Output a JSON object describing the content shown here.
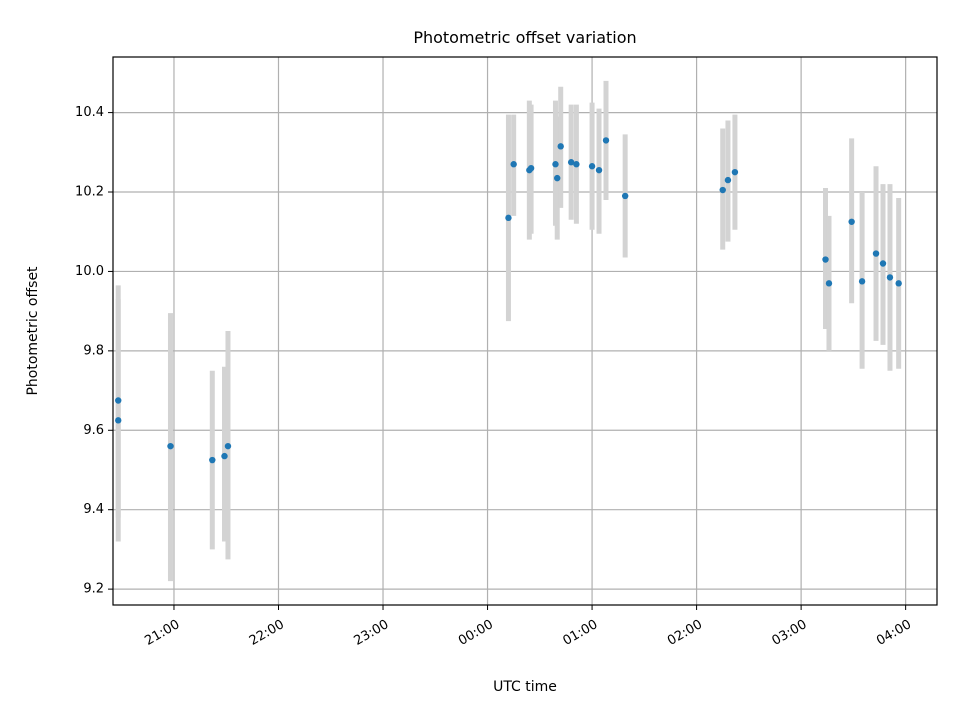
{
  "chart_data": {
    "type": "scatter",
    "title": "Photometric offset variation",
    "xlabel": "UTC time",
    "ylabel": "Photometric offset",
    "grid": true,
    "legend": "none",
    "x_axis": {
      "kind": "time",
      "range": [
        "20:25",
        "04:18"
      ],
      "tick_labels": [
        "21:00",
        "22:00",
        "23:00",
        "00:00",
        "01:00",
        "02:00",
        "03:00",
        "04:00"
      ]
    },
    "y_axis": {
      "range": [
        9.16,
        10.54
      ],
      "tick_labels": [
        "9.2",
        "9.4",
        "9.6",
        "9.8",
        "10.0",
        "10.2",
        "10.4"
      ]
    },
    "colors": {
      "points": "#1f77b4",
      "errorbars": "#d3d3d3",
      "grid": "#b0b0b0"
    },
    "series": [
      {
        "points": [
          {
            "t": "20:28",
            "y": 9.675,
            "lo": 9.38,
            "hi": 9.965
          },
          {
            "t": "20:28",
            "y": 9.625,
            "lo": 9.32,
            "hi": 9.93
          },
          {
            "t": "20:58",
            "y": 9.56,
            "lo": 9.22,
            "hi": 9.895
          },
          {
            "t": "21:22",
            "y": 9.525,
            "lo": 9.3,
            "hi": 9.75
          },
          {
            "t": "21:29",
            "y": 9.535,
            "lo": 9.32,
            "hi": 9.76
          },
          {
            "t": "21:31",
            "y": 9.56,
            "lo": 9.275,
            "hi": 9.85
          },
          {
            "t": "00:12",
            "y": 10.135,
            "lo": 9.875,
            "hi": 10.395
          },
          {
            "t": "00:15",
            "y": 10.27,
            "lo": 10.14,
            "hi": 10.395
          },
          {
            "t": "00:24",
            "y": 10.255,
            "lo": 10.08,
            "hi": 10.43
          },
          {
            "t": "00:25",
            "y": 10.26,
            "lo": 10.095,
            "hi": 10.42
          },
          {
            "t": "00:39",
            "y": 10.27,
            "lo": 10.115,
            "hi": 10.43
          },
          {
            "t": "00:40",
            "y": 10.235,
            "lo": 10.08,
            "hi": 10.39
          },
          {
            "t": "00:42",
            "y": 10.315,
            "lo": 10.16,
            "hi": 10.465
          },
          {
            "t": "00:48",
            "y": 10.275,
            "lo": 10.13,
            "hi": 10.42
          },
          {
            "t": "00:51",
            "y": 10.27,
            "lo": 10.12,
            "hi": 10.42
          },
          {
            "t": "01:00",
            "y": 10.265,
            "lo": 10.105,
            "hi": 10.425
          },
          {
            "t": "01:04",
            "y": 10.255,
            "lo": 10.095,
            "hi": 10.41
          },
          {
            "t": "01:08",
            "y": 10.33,
            "lo": 10.18,
            "hi": 10.48
          },
          {
            "t": "01:19",
            "y": 10.19,
            "lo": 10.035,
            "hi": 10.345
          },
          {
            "t": "02:15",
            "y": 10.205,
            "lo": 10.055,
            "hi": 10.36
          },
          {
            "t": "02:18",
            "y": 10.23,
            "lo": 10.075,
            "hi": 10.38
          },
          {
            "t": "02:22",
            "y": 10.25,
            "lo": 10.105,
            "hi": 10.395
          },
          {
            "t": "03:14",
            "y": 10.03,
            "lo": 9.855,
            "hi": 10.21
          },
          {
            "t": "03:16",
            "y": 9.97,
            "lo": 9.8,
            "hi": 10.14
          },
          {
            "t": "03:29",
            "y": 10.125,
            "lo": 9.92,
            "hi": 10.335
          },
          {
            "t": "03:35",
            "y": 9.975,
            "lo": 9.755,
            "hi": 10.2
          },
          {
            "t": "03:43",
            "y": 10.045,
            "lo": 9.825,
            "hi": 10.265
          },
          {
            "t": "03:47",
            "y": 10.02,
            "lo": 9.815,
            "hi": 10.22
          },
          {
            "t": "03:51",
            "y": 9.985,
            "lo": 9.75,
            "hi": 10.22
          },
          {
            "t": "03:56",
            "y": 9.97,
            "lo": 9.755,
            "hi": 10.185
          }
        ]
      }
    ]
  }
}
